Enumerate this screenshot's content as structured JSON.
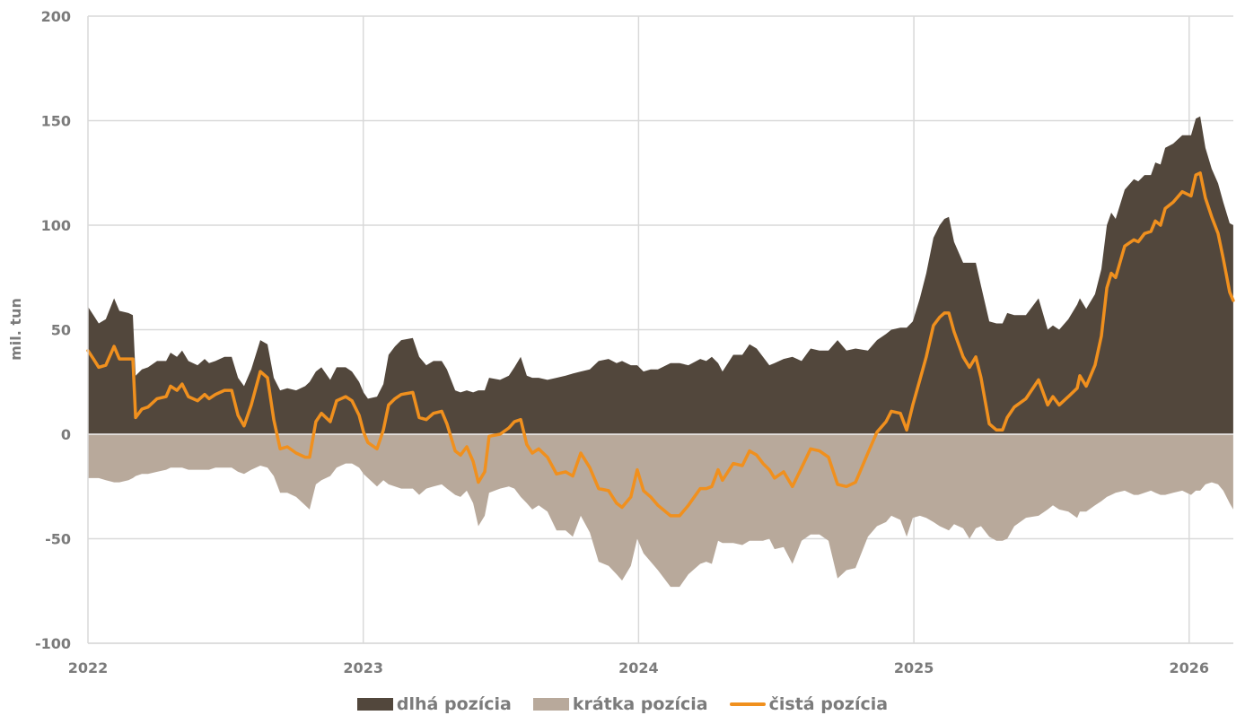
{
  "chart_data": {
    "type": "area",
    "title": "",
    "xlabel": "",
    "ylabel": "mil. tun",
    "xlim": [
      2022.0,
      2026.16
    ],
    "ylim": [
      -100,
      200
    ],
    "grid": true,
    "legend_position": "bottom",
    "x_ticks": [
      "2022",
      "2023",
      "2024",
      "2025",
      "2026"
    ],
    "x_tick_values": [
      2022,
      2023,
      2024,
      2025,
      2026
    ],
    "y_ticks": [
      "200",
      "150",
      "100",
      "50",
      "0",
      "-50",
      "-100"
    ],
    "y_tick_values": [
      200,
      150,
      100,
      50,
      0,
      -50,
      -100
    ],
    "colors": {
      "long": "#52473c",
      "short": "#b8a99b",
      "net": "#f0901e",
      "grid": "#d9d9d9",
      "zero": "#f2f2f2"
    },
    "x": [
      2022.0,
      2022.02,
      2022.039,
      2022.065,
      2022.095,
      2022.114,
      2022.147,
      2022.163,
      2022.173,
      2022.196,
      2022.218,
      2022.251,
      2022.284,
      2022.3,
      2022.323,
      2022.342,
      2022.365,
      2022.398,
      2022.424,
      2022.44,
      2022.463,
      2022.496,
      2022.522,
      2022.545,
      2022.567,
      2022.593,
      2022.626,
      2022.652,
      2022.675,
      2022.698,
      2022.724,
      2022.756,
      2022.789,
      2022.805,
      2022.828,
      2022.848,
      2022.88,
      2022.903,
      2022.936,
      2022.959,
      2022.985,
      2023.001,
      2023.017,
      2023.05,
      2023.073,
      2023.092,
      2023.115,
      2023.138,
      2023.18,
      2023.203,
      2023.229,
      2023.255,
      2023.285,
      2023.304,
      2023.334,
      2023.353,
      2023.376,
      2023.399,
      2023.418,
      2023.441,
      2023.457,
      2023.497,
      2023.529,
      2023.549,
      2023.572,
      2023.594,
      2023.614,
      2023.637,
      2023.669,
      2023.702,
      2023.735,
      2023.761,
      2023.79,
      2023.823,
      2023.855,
      2023.891,
      2023.92,
      2023.94,
      2023.972,
      2023.995,
      2024.018,
      2024.044,
      2024.07,
      2024.116,
      2024.149,
      2024.181,
      2024.224,
      2024.246,
      2024.266,
      2024.289,
      2024.305,
      2024.344,
      2024.377,
      2024.403,
      2024.429,
      2024.452,
      2024.475,
      2024.494,
      2024.527,
      2024.559,
      2024.592,
      2024.625,
      2024.657,
      2024.69,
      2024.723,
      2024.755,
      2024.788,
      2024.833,
      2024.866,
      2024.899,
      2024.918,
      2024.951,
      2024.974,
      2024.996,
      2025.022,
      2025.045,
      2025.071,
      2025.094,
      2025.111,
      2025.127,
      2025.146,
      2025.179,
      2025.202,
      2025.225,
      2025.244,
      2025.274,
      2025.3,
      2025.322,
      2025.339,
      2025.365,
      2025.407,
      2025.453,
      2025.486,
      2025.505,
      2025.528,
      2025.561,
      2025.593,
      2025.603,
      2025.626,
      2025.658,
      2025.681,
      2025.701,
      2025.717,
      2025.733,
      2025.766,
      2025.799,
      2025.815,
      2025.838,
      2025.861,
      2025.877,
      2025.896,
      2025.913,
      2025.942,
      2025.975,
      2026.007,
      2026.024,
      2026.04,
      2026.059,
      2026.082,
      2026.105,
      2026.124,
      2026.147,
      2026.16
    ],
    "series": [
      {
        "name": "dlhá pozícia",
        "type": "area",
        "values": [
          61,
          57,
          53,
          55,
          65,
          59,
          58,
          57,
          28,
          31,
          32,
          35,
          35,
          39,
          37,
          40,
          35,
          33,
          36,
          34,
          35,
          37,
          37,
          27,
          23,
          31,
          45,
          43,
          27,
          21,
          22,
          21,
          23,
          25,
          30,
          32,
          26,
          32,
          32,
          30,
          25,
          20,
          17,
          18,
          24,
          38,
          42,
          45,
          46,
          37,
          33,
          35,
          35,
          31,
          21,
          20,
          21,
          20,
          21,
          21,
          27,
          26,
          28,
          32,
          37,
          28,
          27,
          27,
          26,
          27,
          28,
          29,
          30,
          31,
          35,
          36,
          34,
          35,
          33,
          33,
          30,
          31,
          31,
          34,
          34,
          33,
          36,
          35,
          37,
          34,
          30,
          38,
          38,
          43,
          41,
          37,
          33,
          34,
          36,
          37,
          35,
          41,
          40,
          40,
          45,
          40,
          41,
          40,
          45,
          48,
          50,
          51,
          51,
          54,
          65,
          77,
          94,
          100,
          103,
          104,
          92,
          82,
          82,
          82,
          71,
          54,
          53,
          53,
          58,
          57,
          57,
          65,
          50,
          52,
          50,
          55,
          62,
          65,
          60,
          67,
          79,
          100,
          106,
          103,
          117,
          122,
          121,
          124,
          124,
          130,
          129,
          137,
          139,
          143,
          143,
          151,
          152,
          137,
          127,
          120,
          111,
          101,
          100
        ]
      },
      {
        "name": "krátka pozícia",
        "type": "area",
        "values": [
          -21,
          -21,
          -21,
          -22,
          -23,
          -23,
          -22,
          -21,
          -20,
          -19,
          -19,
          -18,
          -17,
          -16,
          -16,
          -16,
          -17,
          -17,
          -17,
          -17,
          -16,
          -16,
          -16,
          -18,
          -19,
          -17,
          -15,
          -16,
          -20,
          -28,
          -28,
          -30,
          -34,
          -36,
          -24,
          -22,
          -20,
          -16,
          -14,
          -14,
          -16,
          -19,
          -21,
          -25,
          -22,
          -24,
          -25,
          -26,
          -26,
          -29,
          -26,
          -25,
          -24,
          -26,
          -29,
          -30,
          -27,
          -33,
          -44,
          -39,
          -28,
          -26,
          -25,
          -26,
          -30,
          -33,
          -36,
          -34,
          -37,
          -46,
          -46,
          -49,
          -39,
          -47,
          -61,
          -63,
          -67,
          -70,
          -63,
          -50,
          -57,
          -61,
          -65,
          -73,
          -73,
          -67,
          -62,
          -61,
          -62,
          -51,
          -52,
          -52,
          -53,
          -51,
          -51,
          -51,
          -50,
          -55,
          -54,
          -62,
          -51,
          -48,
          -48,
          -51,
          -69,
          -65,
          -64,
          -49,
          -44,
          -42,
          -39,
          -41,
          -49,
          -40,
          -39,
          -40,
          -42,
          -44,
          -45,
          -46,
          -43,
          -45,
          -50,
          -45,
          -44,
          -49,
          -51,
          -51,
          -50,
          -44,
          -40,
          -39,
          -36,
          -34,
          -36,
          -37,
          -40,
          -37,
          -37,
          -34,
          -32,
          -30,
          -29,
          -28,
          -27,
          -29,
          -29,
          -28,
          -27,
          -28,
          -29,
          -29,
          -28,
          -27,
          -29,
          -27,
          -27,
          -24,
          -23,
          -24,
          -27,
          -33,
          -36
        ]
      },
      {
        "name": "čistá pozícia",
        "type": "line",
        "values": [
          40,
          36,
          32,
          33,
          42,
          36,
          36,
          36,
          8,
          12,
          13,
          17,
          18,
          23,
          21,
          24,
          18,
          16,
          19,
          17,
          19,
          21,
          21,
          9,
          4,
          14,
          30,
          27,
          7,
          -7,
          -6,
          -9,
          -11,
          -11,
          6,
          10,
          6,
          16,
          18,
          16,
          9,
          1,
          -4,
          -7,
          2,
          14,
          17,
          19,
          20,
          8,
          7,
          10,
          11,
          5,
          -8,
          -10,
          -6,
          -13,
          -23,
          -18,
          -1,
          0,
          3,
          6,
          7,
          -5,
          -9,
          -7,
          -11,
          -19,
          -18,
          -20,
          -9,
          -16,
          -26,
          -27,
          -33,
          -35,
          -30,
          -17,
          -27,
          -30,
          -34,
          -39,
          -39,
          -34,
          -26,
          -26,
          -25,
          -17,
          -22,
          -14,
          -15,
          -8,
          -10,
          -14,
          -17,
          -21,
          -18,
          -25,
          -16,
          -7,
          -8,
          -11,
          -24,
          -25,
          -23,
          -9,
          1,
          6,
          11,
          10,
          2,
          14,
          26,
          37,
          52,
          56,
          58,
          58,
          49,
          37,
          32,
          37,
          27,
          5,
          2,
          2,
          8,
          13,
          17,
          26,
          14,
          18,
          14,
          18,
          22,
          28,
          23,
          33,
          47,
          70,
          77,
          75,
          90,
          93,
          92,
          96,
          97,
          102,
          100,
          108,
          111,
          116,
          114,
          124,
          125,
          113,
          104,
          96,
          84,
          68,
          64
        ]
      }
    ]
  }
}
